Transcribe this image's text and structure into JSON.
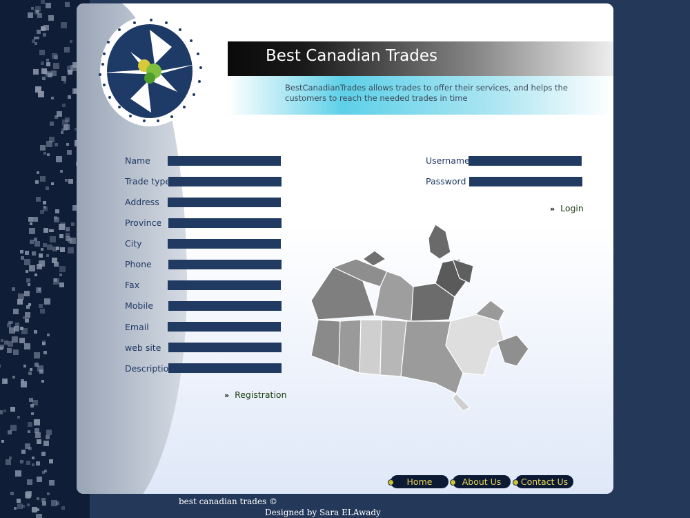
{
  "header": {
    "title": "Best Canadian Trades",
    "tagline": "BestCanadianTrades  allows trades to offer their services, and helps the customers to reach the needed trades in time"
  },
  "registration": {
    "fields": [
      {
        "label": "Name",
        "value": ""
      },
      {
        "label": "Trade type",
        "value": ""
      },
      {
        "label": "Address",
        "value": ""
      },
      {
        "label": "Province",
        "value": ""
      },
      {
        "label": "City",
        "value": ""
      },
      {
        "label": "Phone",
        "value": ""
      },
      {
        "label": "Fax",
        "value": ""
      },
      {
        "label": "Mobile",
        "value": ""
      },
      {
        "label": "Email",
        "value": ""
      },
      {
        "label": "web site",
        "value": ""
      },
      {
        "label": "Description",
        "value": ""
      }
    ],
    "submit_label": "Registration"
  },
  "login": {
    "username_label": "Username",
    "password_label": "Password",
    "submit_label": "Login"
  },
  "nav": {
    "items": [
      "Home",
      "About Us",
      "Contact Us"
    ],
    "accent": "#e6d25a"
  },
  "footer": {
    "copyright": "best canadian trades ©",
    "designer": "Designed by Sara ELAwady"
  },
  "icons": {
    "logo": "logo-icon",
    "map": "canada-map-icon",
    "arrow": "double-chevron-right-icon"
  },
  "colors": {
    "background": "#24395a",
    "input": "#203a61",
    "label": "#1f3863",
    "link": "#1d3b10"
  }
}
